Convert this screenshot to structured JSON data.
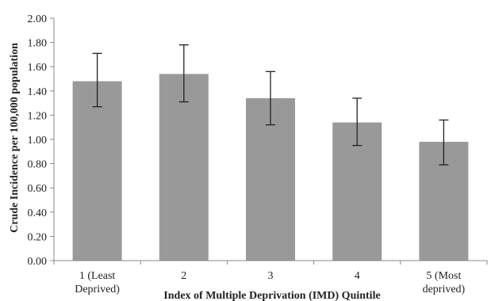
{
  "chart_data": {
    "type": "bar",
    "title": "",
    "xlabel": "Index of Multiple Deprivation (IMD) Quintile",
    "ylabel": "Crude Incidence per 100,000 population",
    "ylim": [
      0,
      2.0
    ],
    "yticks": [
      "0.00",
      "0.20",
      "0.40",
      "0.60",
      "0.80",
      "1.00",
      "1.20",
      "1.40",
      "1.60",
      "1.80",
      "2.00"
    ],
    "categories": [
      [
        "1 (Least",
        "Deprived)"
      ],
      [
        "2"
      ],
      [
        "3"
      ],
      [
        "4"
      ],
      [
        "5 (Most",
        "deprived)"
      ]
    ],
    "values": [
      1.48,
      1.54,
      1.34,
      1.14,
      0.98
    ],
    "error_low": [
      1.27,
      1.31,
      1.12,
      0.95,
      0.79
    ],
    "error_high": [
      1.71,
      1.78,
      1.56,
      1.34,
      1.16
    ],
    "grid": false,
    "legend": "none",
    "colors": {
      "bar": "#999999",
      "axis": "#888888",
      "error_bar": "#222222"
    }
  }
}
